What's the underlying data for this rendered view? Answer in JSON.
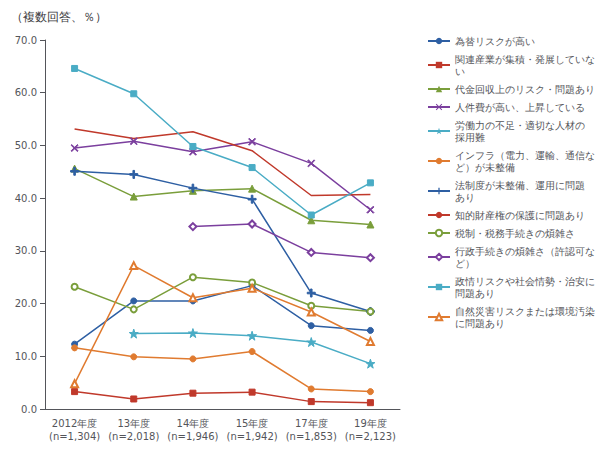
{
  "chart_data": {
    "type": "line",
    "title": "（複数回答、％）",
    "categories": [
      "2012年度\n(n=1,304)",
      "13年度\n(n=2,018)",
      "14年度\n(n=1,946)",
      "15年度\n(n=1,942)",
      "17年度\n(n=1,853)",
      "19年度\n(n=2,123)"
    ],
    "ylim": [
      0.0,
      70.0
    ],
    "yticks": [
      {
        "value": 0,
        "label": "0.0"
      },
      {
        "value": 10,
        "label": "10.0"
      },
      {
        "value": 20,
        "label": "20.0"
      },
      {
        "value": 30,
        "label": "30.0"
      },
      {
        "value": 40,
        "label": "40.0"
      },
      {
        "value": 50,
        "label": "50.0"
      },
      {
        "value": 60,
        "label": "60.0"
      },
      {
        "value": 70,
        "label": "70.0"
      }
    ],
    "grid": false,
    "legend": "right",
    "series": [
      {
        "name": "為替リスクが高い",
        "color": "#2e5fa3",
        "marker": "circle",
        "values": [
          12.3,
          20.5,
          20.5,
          23.4,
          15.8,
          14.9
        ]
      },
      {
        "name": "関連産業が集積・発展していな\nい",
        "color": "#c0392b",
        "marker": "square",
        "values": [
          3.3,
          1.9,
          3.0,
          3.2,
          1.4,
          1.2
        ]
      },
      {
        "name": "代金回収上のリスク・問題あり",
        "color": "#7a9e3b",
        "marker": "triangle",
        "values": [
          45.6,
          40.3,
          41.4,
          41.8,
          35.8,
          35.0
        ]
      },
      {
        "name": "人件費が高い、上昇している",
        "color": "#7b3f9e",
        "marker": "x",
        "values": [
          49.5,
          50.8,
          48.8,
          50.7,
          46.6,
          37.8
        ]
      },
      {
        "name": "労働力の不足・適切な人材の\n採用難",
        "color": "#4aacc5",
        "marker": "star",
        "values": [
          null,
          14.3,
          14.4,
          13.9,
          12.7,
          8.6
        ]
      },
      {
        "name": "インフラ（電力、運輸、通信な\nど）が未整備",
        "color": "#e07b30",
        "marker": "circle",
        "values": [
          11.6,
          9.9,
          9.5,
          10.9,
          3.8,
          3.3
        ]
      },
      {
        "name": "法制度が未整備、運用に問題\nあり",
        "color": "#2e5fa3",
        "marker": "plus",
        "values": [
          45.1,
          44.5,
          41.9,
          39.8,
          22.0,
          18.5
        ]
      },
      {
        "name": "知的財産権の保護に問題あり",
        "color": "#c0392b",
        "marker": "none",
        "values": [
          53.1,
          51.3,
          52.6,
          49.0,
          40.5,
          40.7
        ]
      },
      {
        "name": "税制・税務手続きの煩雑さ",
        "color": "#7a9e3b",
        "marker": "hollow_circle",
        "values": [
          23.2,
          18.9,
          25.0,
          24.0,
          19.6,
          18.5
        ]
      },
      {
        "name": "行政手続きの煩雑さ（許認可な\nど）",
        "color": "#7b3f9e",
        "marker": "hollow_diamond",
        "values": [
          null,
          null,
          34.6,
          35.1,
          29.7,
          28.7
        ]
      },
      {
        "name": "政情リスクや社会情勢・治安に\n問題あり",
        "color": "#4aacc5",
        "marker": "square",
        "values": [
          64.6,
          59.8,
          49.8,
          45.8,
          36.8,
          42.9
        ]
      },
      {
        "name": "自然災害リスクまたは環境汚染\nに問題あり",
        "color": "#e07b30",
        "marker": "hollow_triangle",
        "values": [
          4.8,
          27.2,
          21.1,
          22.9,
          18.4,
          12.8
        ]
      }
    ]
  }
}
